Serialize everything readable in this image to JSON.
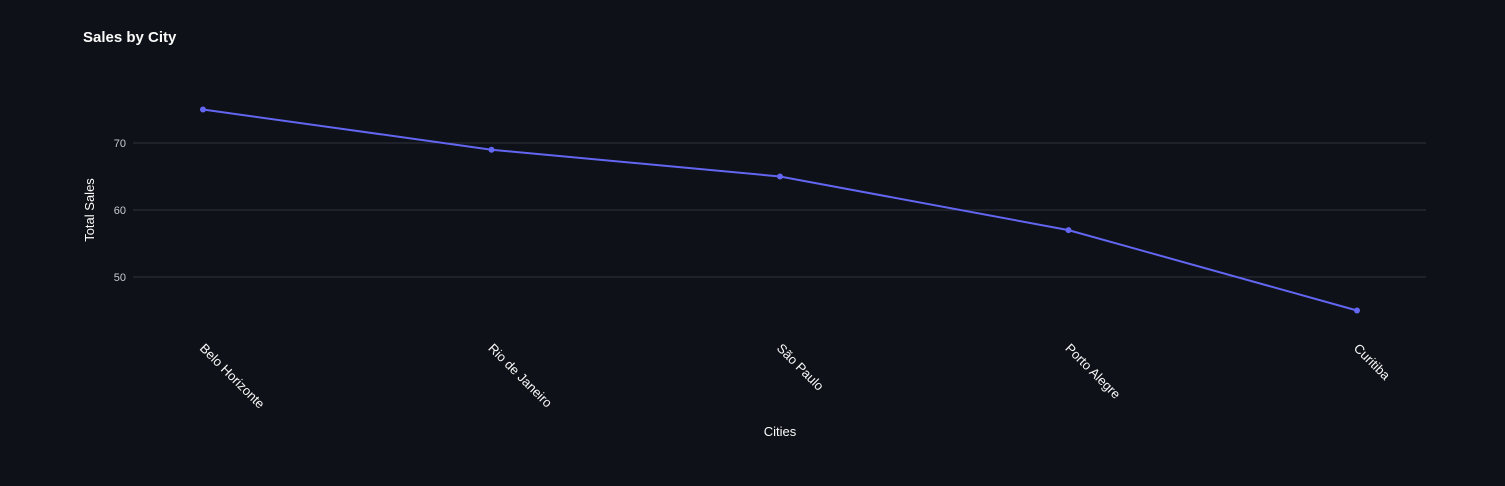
{
  "chart_data": {
    "type": "line",
    "title": "Sales by City",
    "xlabel": "Cities",
    "ylabel": "Total Sales",
    "categories": [
      "Belo Horizonte",
      "Rio de Janeiro",
      "São Paulo",
      "Porto Alegre",
      "Curitiba"
    ],
    "series": [
      {
        "values": [
          75,
          69,
          65,
          57,
          45
        ]
      }
    ],
    "y_ticks": [
      50,
      60,
      70
    ],
    "ylim": [
      40,
      80
    ],
    "grid": true,
    "colors": {
      "line": "#6366f1",
      "background": "#0e1117",
      "grid": "#31333f"
    }
  }
}
